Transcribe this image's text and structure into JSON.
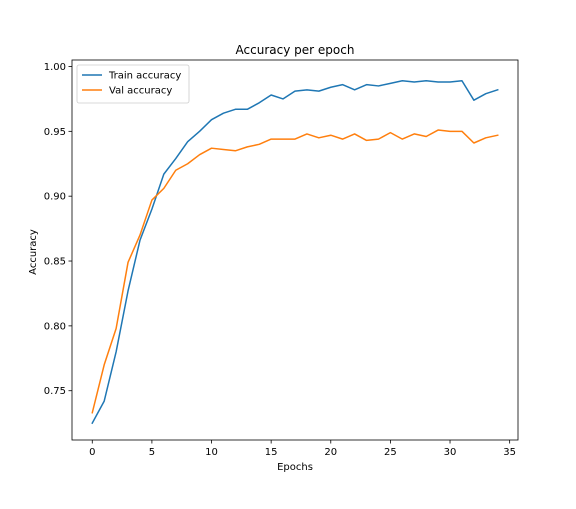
{
  "chart_data": {
    "type": "line",
    "title": "Accuracy per epoch",
    "xlabel": "Epochs",
    "ylabel": "Accuracy",
    "xlim": [
      -1.7,
      35.7
    ],
    "ylim": [
      0.712,
      1.005
    ],
    "xticks": [
      0,
      5,
      10,
      15,
      20,
      25,
      30,
      35
    ],
    "yticks": [
      0.75,
      0.8,
      0.85,
      0.9,
      0.95,
      1.0
    ],
    "xtick_labels": [
      "0",
      "5",
      "10",
      "15",
      "20",
      "25",
      "30",
      "35"
    ],
    "ytick_labels": [
      "0.75",
      "0.80",
      "0.85",
      "0.90",
      "0.95",
      "1.00"
    ],
    "grid": false,
    "legend": "top-left",
    "x": [
      0,
      1,
      2,
      3,
      4,
      5,
      6,
      7,
      8,
      9,
      10,
      11,
      12,
      13,
      14,
      15,
      16,
      17,
      18,
      19,
      20,
      21,
      22,
      23,
      24,
      25,
      26,
      27,
      28,
      29,
      30,
      31,
      32,
      33,
      34
    ],
    "series": [
      {
        "name": "Train accuracy",
        "color": "#1f77b4",
        "values": [
          0.725,
          0.742,
          0.78,
          0.827,
          0.866,
          0.89,
          0.917,
          0.929,
          0.942,
          0.95,
          0.959,
          0.964,
          0.967,
          0.967,
          0.972,
          0.978,
          0.975,
          0.981,
          0.982,
          0.981,
          0.984,
          0.986,
          0.982,
          0.986,
          0.985,
          0.987,
          0.989,
          0.988,
          0.989,
          0.988,
          0.988,
          0.989,
          0.974,
          0.979,
          0.982
        ]
      },
      {
        "name": "Val accuracy",
        "color": "#ff7f0e",
        "values": [
          0.733,
          0.77,
          0.798,
          0.849,
          0.87,
          0.897,
          0.906,
          0.92,
          0.925,
          0.932,
          0.937,
          0.936,
          0.935,
          0.938,
          0.94,
          0.944,
          0.944,
          0.944,
          0.948,
          0.945,
          0.947,
          0.944,
          0.948,
          0.943,
          0.944,
          0.949,
          0.944,
          0.948,
          0.946,
          0.951,
          0.95,
          0.95,
          0.941,
          0.945,
          0.947
        ]
      }
    ]
  }
}
